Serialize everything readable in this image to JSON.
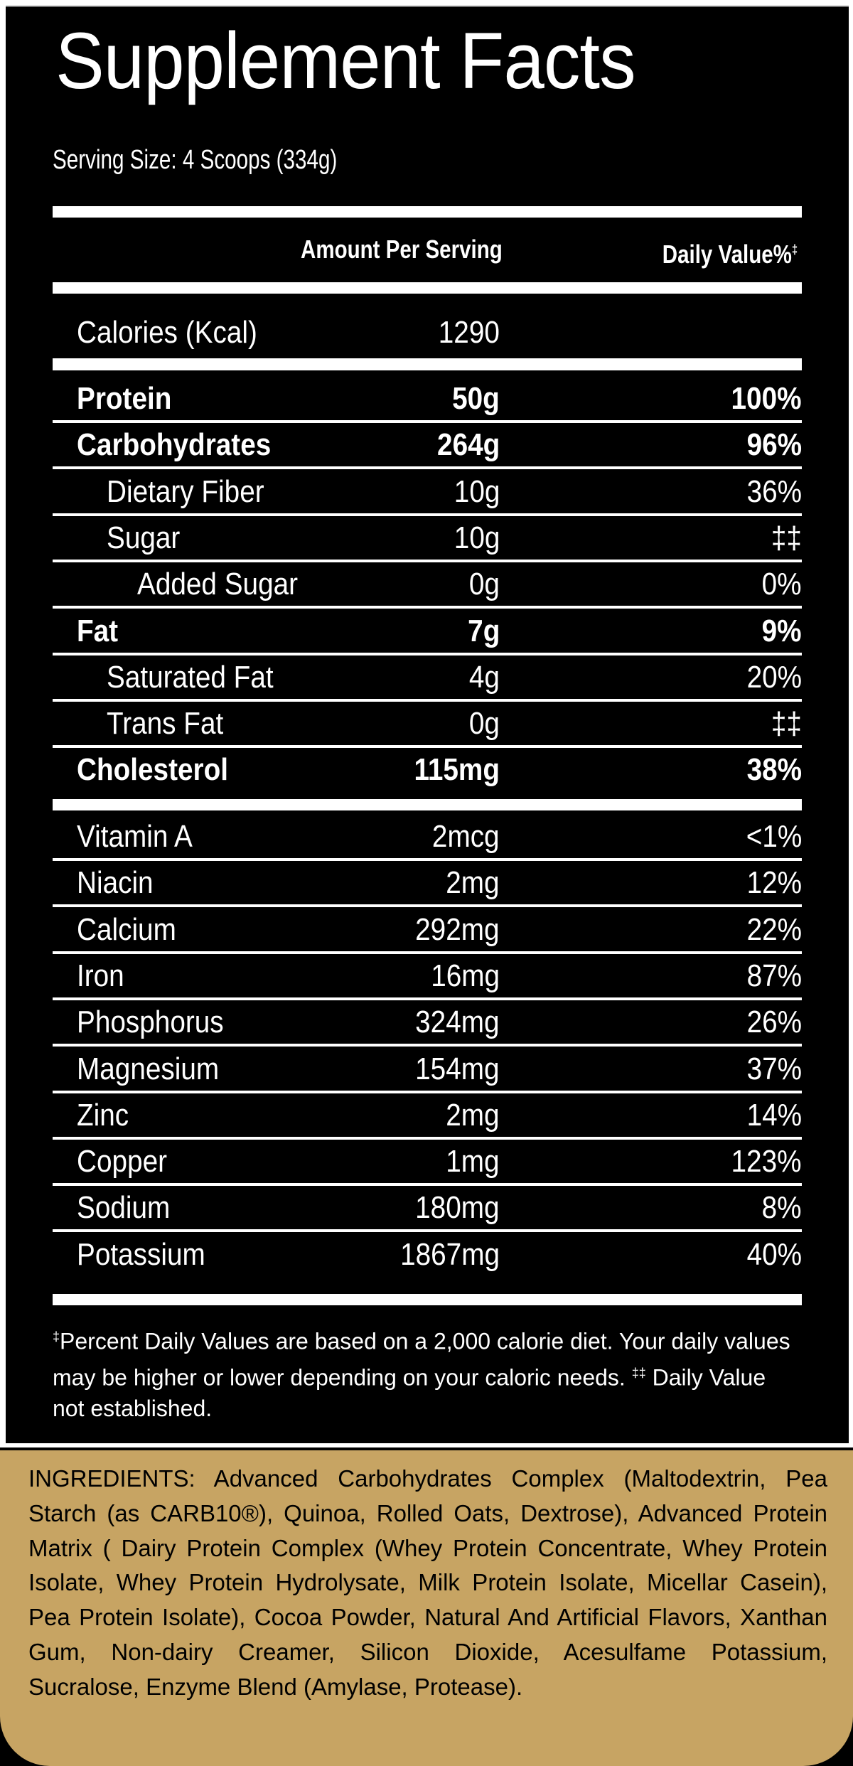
{
  "label": {
    "title": "Supplement Facts",
    "serving_size": "Serving Size: 4 Scoops (334g)",
    "header": {
      "amount_per_serving": "Amount Per Serving",
      "daily_value": "Daily Value%",
      "daily_value_mark": "‡"
    },
    "calories": {
      "label": "Calories (Kcal)",
      "amount": "1290"
    },
    "macros": [
      {
        "label": "Protein",
        "amount": "50g",
        "dv": "100%",
        "bold": true,
        "indent": 0
      },
      {
        "label": "Carbohydrates",
        "amount": "264g",
        "dv": "96%",
        "bold": true,
        "indent": 0
      },
      {
        "label": "Dietary Fiber",
        "amount": "10g",
        "dv": "36%",
        "bold": false,
        "indent": 1
      },
      {
        "label": "Sugar",
        "amount": "10g",
        "dv": "‡‡",
        "bold": false,
        "indent": 1
      },
      {
        "label": "Added Sugar",
        "amount": "0g",
        "dv": "0%",
        "bold": false,
        "indent": 2
      },
      {
        "label": "Fat",
        "amount": "7g",
        "dv": "9%",
        "bold": true,
        "indent": 0
      },
      {
        "label": "Saturated Fat",
        "amount": "4g",
        "dv": "20%",
        "bold": false,
        "indent": 1
      },
      {
        "label": "Trans Fat",
        "amount": "0g",
        "dv": "‡‡",
        "bold": false,
        "indent": 1
      },
      {
        "label": "Cholesterol",
        "amount": "115mg",
        "dv": "38%",
        "bold": true,
        "indent": 0
      }
    ],
    "micros": [
      {
        "label": "Vitamin A",
        "amount": "2mcg",
        "dv": "<1%"
      },
      {
        "label": "Niacin",
        "amount": "2mg",
        "dv": "12%"
      },
      {
        "label": "Calcium",
        "amount": "292mg",
        "dv": "22%"
      },
      {
        "label": "Iron",
        "amount": "16mg",
        "dv": "87%"
      },
      {
        "label": "Phosphorus",
        "amount": "324mg",
        "dv": "26%"
      },
      {
        "label": "Magnesium",
        "amount": "154mg",
        "dv": "37%"
      },
      {
        "label": "Zinc",
        "amount": "2mg",
        "dv": "14%"
      },
      {
        "label": "Copper",
        "amount": "1mg",
        "dv": "123%"
      },
      {
        "label": "Sodium",
        "amount": "180mg",
        "dv": "8%"
      },
      {
        "label": "Potassium",
        "amount": "1867mg",
        "dv": "40%"
      }
    ],
    "footnote": {
      "mark1": "‡",
      "text1": "Percent Daily Values are based on a 2,000 calorie diet. Your daily values may be higher or lower depending on your caloric needs. ",
      "mark2": "‡‡",
      "text2": " Daily Value not established."
    }
  },
  "ingredients": {
    "text": "INGREDIENTS: Advanced Carbohydrates Complex (Maltodextrin, Pea Starch (as CARB10®), Quinoa, Rolled Oats, Dextrose), Advanced Protein Matrix ( Dairy Protein Complex (Whey Protein Concentrate, Whey Protein Isolate, Whey Protein Hydrolysate, Milk Protein Isolate, Micellar Casein), Pea Protein Isolate), Cocoa Powder, Natural And Artificial Flavors, Xanthan Gum, Non-dairy Creamer, Silicon Dioxide, Acesulfame Potassium, Sucralose, Enzyme Blend (Amylase, Protease)."
  },
  "colors": {
    "panel": "#000000",
    "text": "#ffffff",
    "ingredients_bg": "#c7a463",
    "ingredients_text": "#000000"
  }
}
